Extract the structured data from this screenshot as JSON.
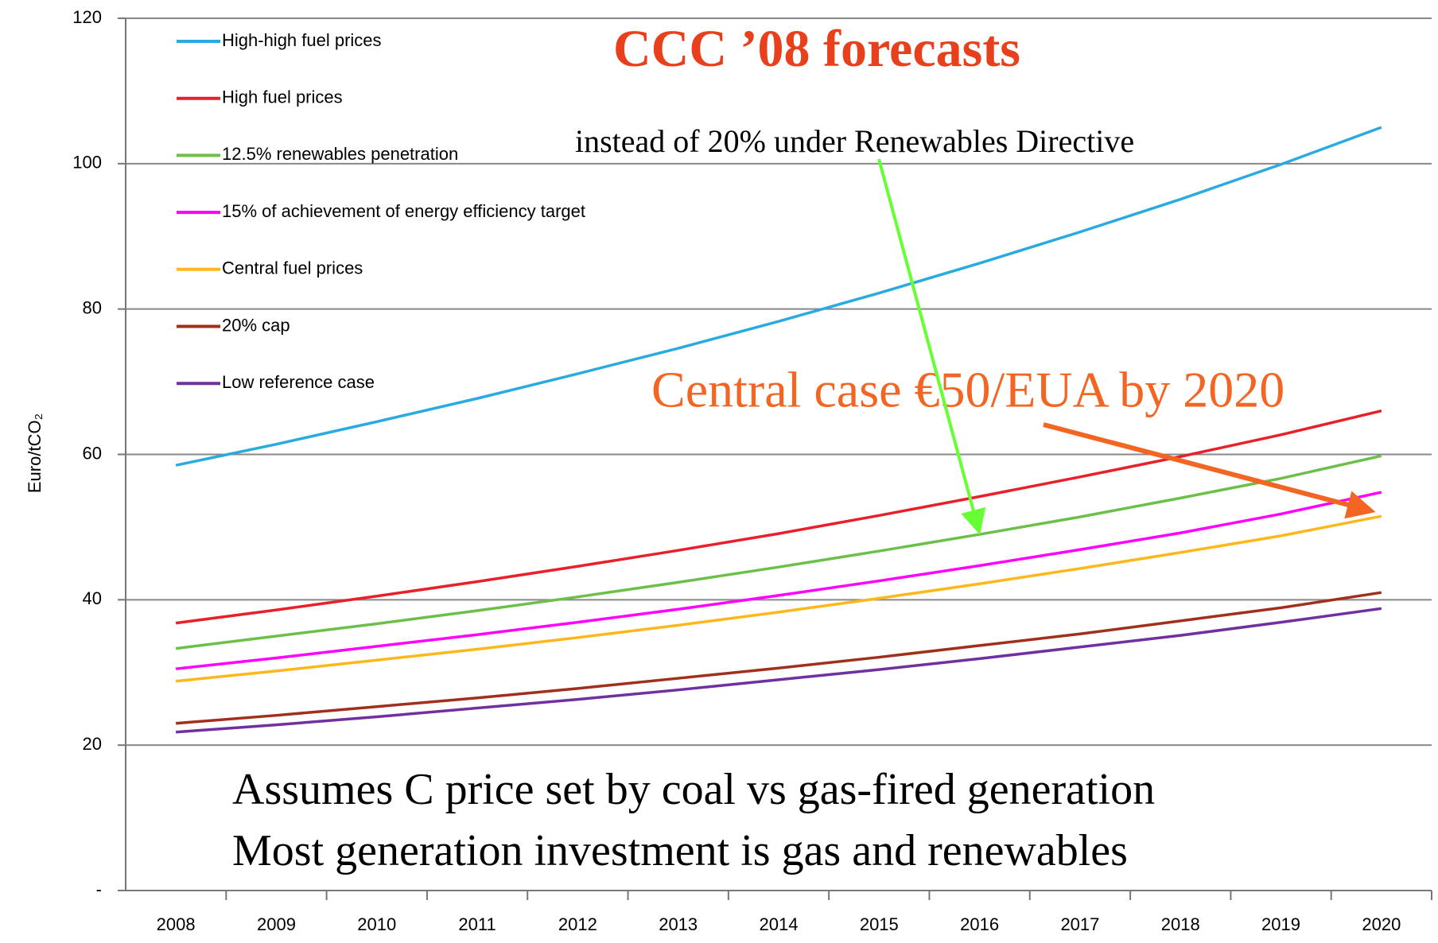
{
  "chart_data": {
    "type": "line",
    "title": "CCC ’08 forecasts",
    "annotations": [
      "instead of 20% under Renewables Directive",
      "Central case €50/EUA by 2020",
      "Assumes C price set by coal vs gas-fired generation",
      "Most generation investment is gas and renewables"
    ],
    "y_label": "Euro/tCO₂",
    "categories": [
      "2008",
      "2009",
      "2010",
      "2011",
      "2012",
      "2013",
      "2014",
      "2015",
      "2016",
      "2017",
      "2018",
      "2019",
      "2020"
    ],
    "series": [
      {
        "name": "High-high fuel prices",
        "color": "#29abe2",
        "values": [
          58.5,
          61.4,
          64.5,
          67.7,
          71.1,
          74.6,
          78.3,
          82.2,
          86.3,
          90.6,
          95.1,
          99.9,
          105
        ]
      },
      {
        "name": "High fuel prices",
        "color": "#e8202a",
        "values": [
          36.8,
          38.6,
          40.5,
          42.5,
          44.6,
          46.8,
          49.1,
          51.6,
          54.2,
          56.9,
          59.7,
          62.7,
          66
        ]
      },
      {
        "name": "12.5% renewables penetration",
        "color": "#6cc04a",
        "values": [
          33.3,
          35,
          36.7,
          38.5,
          40.4,
          42.4,
          44.5,
          46.7,
          49,
          51.4,
          54,
          56.7,
          59.8
        ]
      },
      {
        "name": "15% of achievement of energy efficiency target",
        "color": "#ff00ff",
        "values": [
          30.5,
          32,
          33.6,
          35.2,
          36.9,
          38.7,
          40.6,
          42.6,
          44.7,
          46.9,
          49.2,
          51.8,
          54.8
        ]
      },
      {
        "name": "Central fuel prices",
        "color": "#ffb81c",
        "values": [
          28.8,
          30.2,
          31.7,
          33.2,
          34.8,
          36.5,
          38.3,
          40.2,
          42.2,
          44.3,
          46.5,
          48.8,
          51.5
        ]
      },
      {
        "name": "20% cap",
        "color": "#a0301c",
        "values": [
          23,
          24.1,
          25.3,
          26.5,
          27.8,
          29.2,
          30.6,
          32.1,
          33.7,
          35.3,
          37.1,
          38.9,
          41
        ]
      },
      {
        "name": "Low reference case",
        "color": "#7030a0",
        "values": [
          21.8,
          22.8,
          23.9,
          25.1,
          26.3,
          27.6,
          29,
          30.4,
          31.9,
          33.5,
          35.1,
          36.9,
          38.8
        ]
      }
    ],
    "ylim": [
      0,
      120
    ],
    "yticks": [
      {
        "value": 0,
        "label": "-"
      },
      20,
      40,
      60,
      80,
      100,
      120
    ],
    "grid": true
  }
}
